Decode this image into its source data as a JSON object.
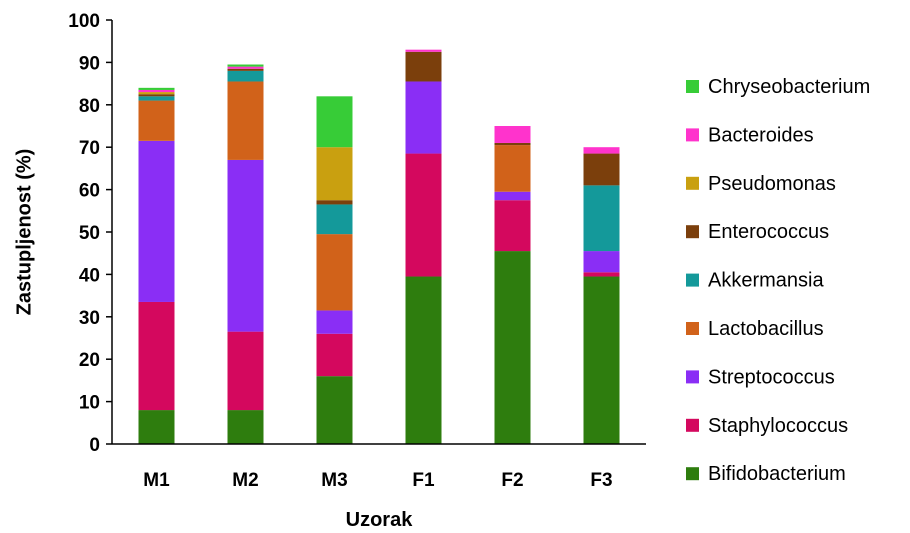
{
  "chart_data": {
    "type": "bar",
    "stacked": true,
    "title": "",
    "xlabel": "Uzorak",
    "ylabel": "Zastupljenost (%)",
    "ylim": [
      0,
      100
    ],
    "yticks": [
      0,
      10,
      20,
      30,
      40,
      50,
      60,
      70,
      80,
      90,
      100
    ],
    "grid": false,
    "legend_position": "right",
    "categories": [
      "M1",
      "M2",
      "M3",
      "F1",
      "F2",
      "F3"
    ],
    "series": [
      {
        "name": "Bifidobacterium",
        "color": "#2e7d0e",
        "values": [
          8,
          8,
          16,
          39.5,
          45.5,
          39.5
        ]
      },
      {
        "name": "Staphylococcus",
        "color": "#d4085e",
        "values": [
          25.5,
          18.5,
          10,
          29,
          12,
          1
        ]
      },
      {
        "name": "Streptococcus",
        "color": "#8a2ef5",
        "values": [
          38,
          40.5,
          5.5,
          17,
          2,
          5
        ]
      },
      {
        "name": "Lactobacillus",
        "color": "#d1621a",
        "values": [
          9.5,
          18.5,
          18,
          0,
          11,
          0
        ]
      },
      {
        "name": "Akkermansia",
        "color": "#14999a",
        "values": [
          1,
          2.5,
          7,
          0,
          0,
          15.5
        ]
      },
      {
        "name": "Enterococcus",
        "color": "#7b3f0c",
        "values": [
          0.5,
          0.5,
          1,
          7,
          0.5,
          7.5
        ]
      },
      {
        "name": "Pseudomonas",
        "color": "#c9a010",
        "values": [
          0.5,
          0,
          12.5,
          0,
          0,
          0
        ]
      },
      {
        "name": "Bacteroides",
        "color": "#ff33cc",
        "values": [
          0.5,
          0.5,
          0,
          0.5,
          4,
          1.5
        ]
      },
      {
        "name": "Chryseobacterium",
        "color": "#37cc37",
        "values": [
          0.5,
          0.5,
          12,
          0,
          0,
          0
        ]
      }
    ]
  }
}
